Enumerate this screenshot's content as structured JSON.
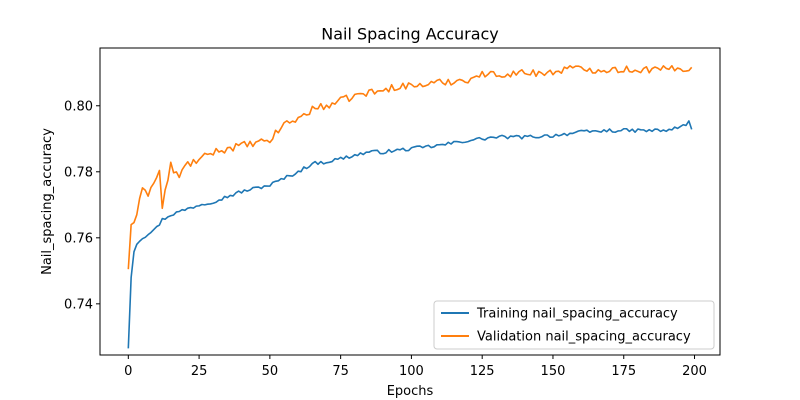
{
  "chart_data": {
    "type": "line",
    "title": "Nail Spacing Accuracy",
    "xlabel": "Epochs",
    "ylabel": "Nail_spacing_accuracy",
    "xlim": [
      -10,
      209
    ],
    "ylim": [
      0.7245,
      0.8175
    ],
    "xticks": [
      0,
      25,
      50,
      75,
      100,
      125,
      150,
      175,
      200
    ],
    "yticks": [
      0.74,
      0.76,
      0.78,
      0.8
    ],
    "ytick_labels": [
      "0.74",
      "0.76",
      "0.78",
      "0.80"
    ],
    "grid": false,
    "legend_position": "bottom-right",
    "series": [
      {
        "name": "Training nail_spacing_accuracy",
        "color": "#1f77b4",
        "knots": [
          [
            0,
            0.7265
          ],
          [
            1,
            0.748
          ],
          [
            2,
            0.756
          ],
          [
            3,
            0.7585
          ],
          [
            5,
            0.76
          ],
          [
            8,
            0.762
          ],
          [
            10,
            0.763
          ],
          [
            12,
            0.7655
          ],
          [
            15,
            0.767
          ],
          [
            20,
            0.7685
          ],
          [
            25,
            0.77
          ],
          [
            30,
            0.771
          ],
          [
            35,
            0.7725
          ],
          [
            40,
            0.774
          ],
          [
            45,
            0.775
          ],
          [
            50,
            0.776
          ],
          [
            55,
            0.778
          ],
          [
            60,
            0.78
          ],
          [
            65,
            0.7825
          ],
          [
            70,
            0.783
          ],
          [
            75,
            0.784
          ],
          [
            80,
            0.785
          ],
          [
            85,
            0.786
          ],
          [
            90,
            0.786
          ],
          [
            95,
            0.7865
          ],
          [
            100,
            0.787
          ],
          [
            110,
            0.788
          ],
          [
            120,
            0.7895
          ],
          [
            130,
            0.7905
          ],
          [
            140,
            0.7905
          ],
          [
            150,
            0.791
          ],
          [
            160,
            0.792
          ],
          [
            170,
            0.7925
          ],
          [
            180,
            0.7925
          ],
          [
            190,
            0.7925
          ],
          [
            195,
            0.7935
          ],
          [
            198,
            0.795
          ],
          [
            199,
            0.793
          ]
        ]
      },
      {
        "name": "Validation nail_spacing_accuracy",
        "color": "#ff7f0e",
        "knots": [
          [
            0,
            0.7505
          ],
          [
            1,
            0.764
          ],
          [
            3,
            0.766
          ],
          [
            5,
            0.776
          ],
          [
            7,
            0.7735
          ],
          [
            9,
            0.7765
          ],
          [
            11,
            0.78
          ],
          [
            12,
            0.7695
          ],
          [
            15,
            0.782
          ],
          [
            18,
            0.778
          ],
          [
            20,
            0.782
          ],
          [
            25,
            0.7835
          ],
          [
            30,
            0.786
          ],
          [
            35,
            0.787
          ],
          [
            40,
            0.788
          ],
          [
            45,
            0.7885
          ],
          [
            50,
            0.7895
          ],
          [
            55,
            0.7945
          ],
          [
            60,
            0.796
          ],
          [
            65,
            0.799
          ],
          [
            70,
            0.8
          ],
          [
            75,
            0.8015
          ],
          [
            80,
            0.803
          ],
          [
            85,
            0.804
          ],
          [
            90,
            0.8045
          ],
          [
            95,
            0.806
          ],
          [
            100,
            0.806
          ],
          [
            110,
            0.807
          ],
          [
            120,
            0.808
          ],
          [
            125,
            0.8095
          ],
          [
            130,
            0.8095
          ],
          [
            140,
            0.81
          ],
          [
            150,
            0.81
          ],
          [
            155,
            0.8115
          ],
          [
            160,
            0.811
          ],
          [
            170,
            0.811
          ],
          [
            180,
            0.811
          ],
          [
            190,
            0.811
          ],
          [
            199,
            0.8115
          ]
        ]
      }
    ]
  }
}
